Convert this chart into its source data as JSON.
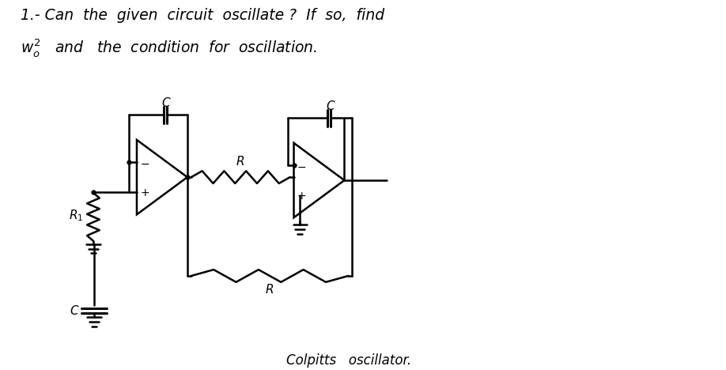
{
  "bg_color": "#ffffff",
  "fig_width": 9.18,
  "fig_height": 4.68,
  "dpi": 100,
  "line1": "1.- Can  the  given  circuit  oscillate ?  If  so,  find",
  "line2_prefix": "$w_o^2$   and   the  condition  for  oscillation.",
  "bottom_text": "Colpitts   oscillator.",
  "lw": 1.8
}
